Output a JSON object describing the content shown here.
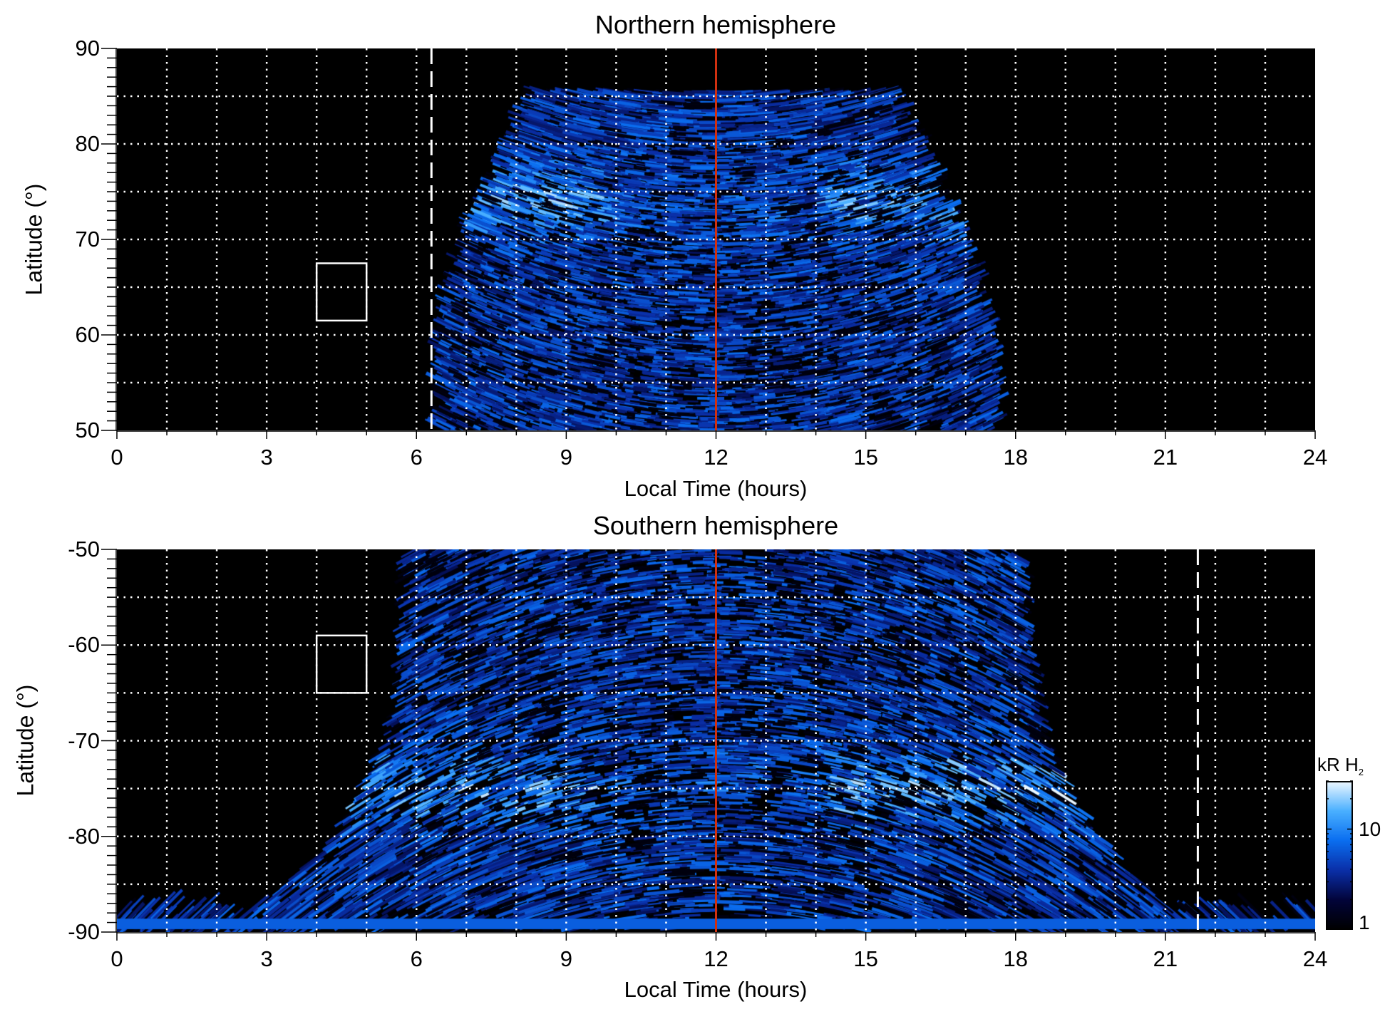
{
  "chart_data": [
    {
      "type": "heatmap",
      "title": "Northern hemisphere",
      "xlabel": "Local Time (hours)",
      "ylabel": "Latitude (°)",
      "xlim": [
        0,
        24
      ],
      "ylim": [
        50,
        90
      ],
      "xticks": [
        "0",
        "3",
        "6",
        "9",
        "12",
        "15",
        "18",
        "21",
        "24"
      ],
      "yticks": [
        "90",
        "80",
        "70",
        "60",
        "50"
      ],
      "grid": true,
      "annotations": {
        "noon_line_lt": 12,
        "noon_line_color": "#d03010",
        "dashed_line_lt": 6.3,
        "box": {
          "lt": [
            4,
            5
          ],
          "lat": [
            61.5,
            67.5
          ]
        }
      }
    },
    {
      "type": "heatmap",
      "title": "Southern hemisphere",
      "xlabel": "Local Time (hours)",
      "ylabel": "Latitude (°)",
      "xlim": [
        0,
        24
      ],
      "ylim": [
        -90,
        -50
      ],
      "xticks": [
        "0",
        "3",
        "6",
        "9",
        "12",
        "15",
        "18",
        "21",
        "24"
      ],
      "yticks": [
        "-50",
        "-60",
        "-70",
        "-80",
        "-90"
      ],
      "grid": true,
      "annotations": {
        "noon_line_lt": 12,
        "noon_line_color": "#d03010",
        "dashed_line_lt": 21.65,
        "box": {
          "lt": [
            4,
            5
          ],
          "lat": [
            -59,
            -65
          ]
        }
      }
    }
  ],
  "colorbar": {
    "label": "kR H",
    "label_sub": "2",
    "scale": "log",
    "range": [
      1,
      30
    ],
    "ticks": [
      "10",
      "1"
    ],
    "colors": [
      "#000000",
      "#02043a",
      "#0a2fa8",
      "#0a6ef0",
      "#4ab0ff",
      "#eef8ff"
    ]
  }
}
